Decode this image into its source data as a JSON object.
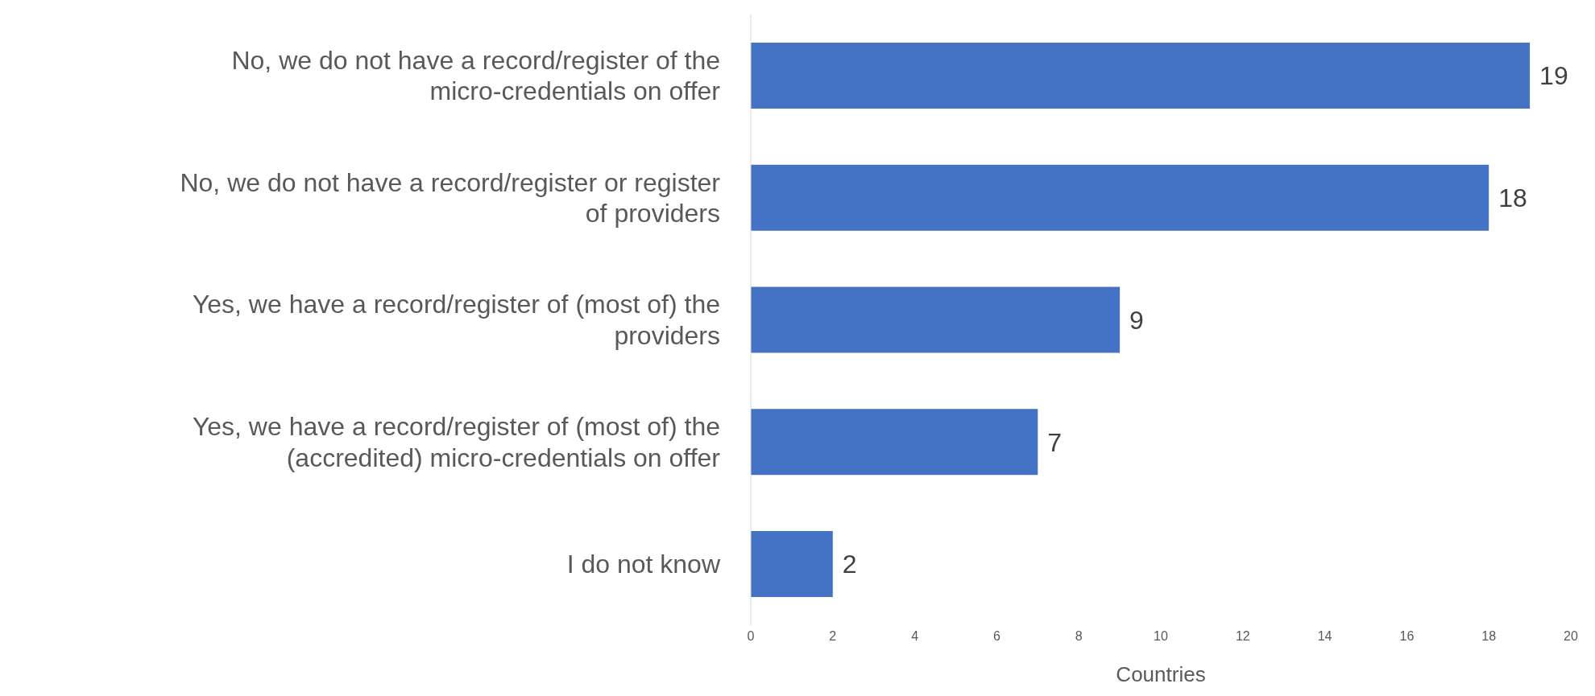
{
  "chart_data": {
    "type": "bar",
    "orientation": "horizontal",
    "xlabel": "Countries",
    "categories": [
      "No, we do not have a record/register of the micro-credentials on offer",
      "No, we do not have a record/register or register of providers",
      "Yes, we have a record/register of (most of) the providers",
      "Yes, we have a record/register of (most of) the (accredited) micro-credentials on offer",
      "I do not know"
    ],
    "values": [
      19,
      18,
      9,
      7,
      2
    ],
    "color": "#4472c4",
    "xlim": [
      0,
      20
    ],
    "xticks": [
      0,
      2,
      4,
      6,
      8,
      10,
      12,
      14,
      16,
      18,
      20
    ],
    "data_labels": true
  }
}
